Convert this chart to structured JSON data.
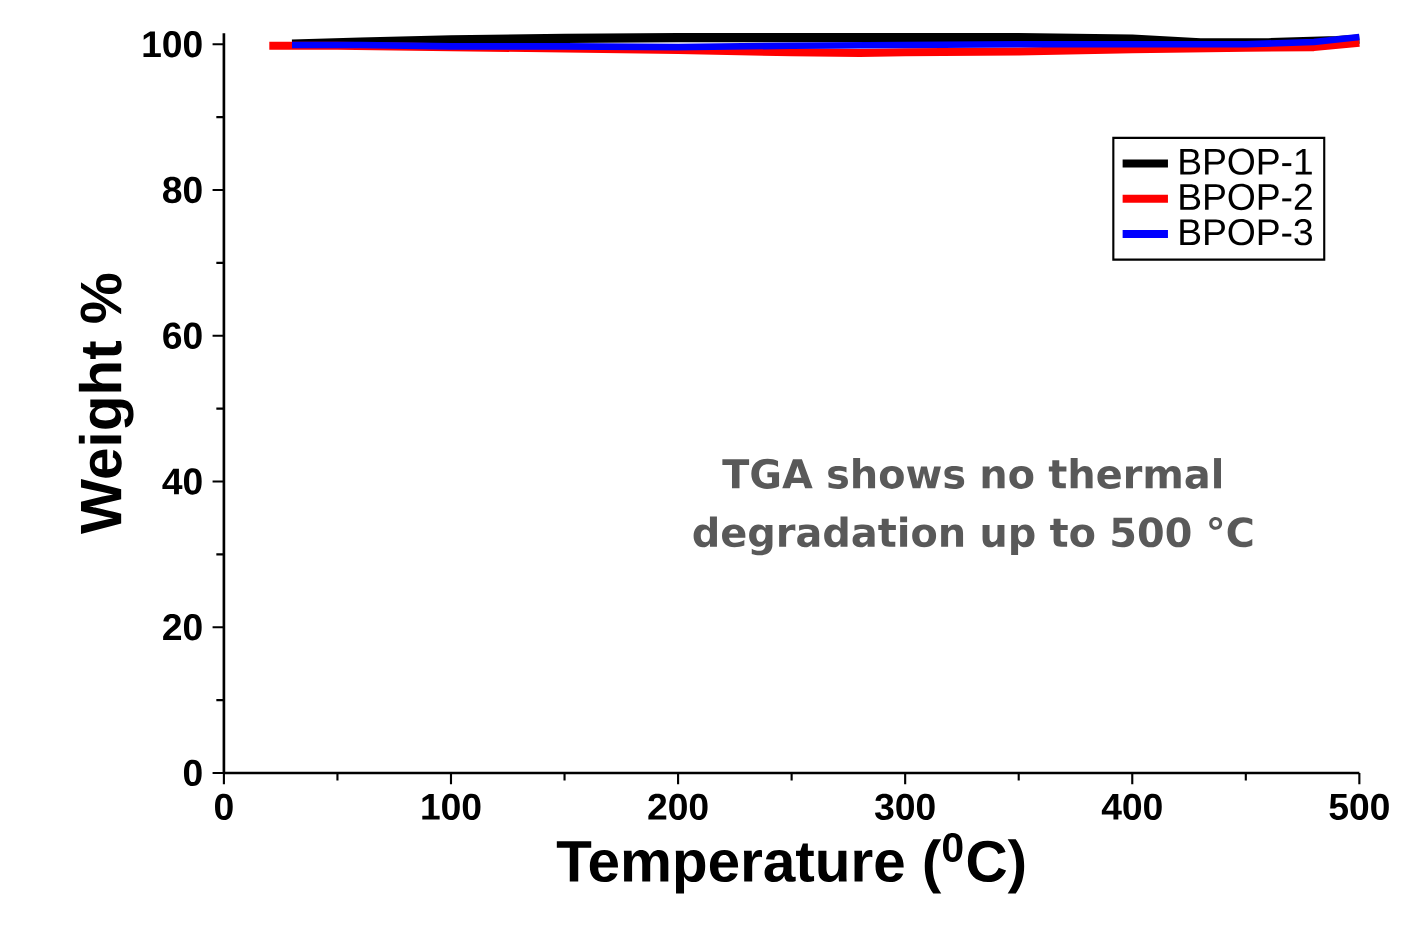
{
  "chart_data": {
    "type": "line",
    "xlabel": "Temperature ($^{0}$C)",
    "ylabel": "Weight %",
    "xlim": [
      0,
      500
    ],
    "ylim": [
      0,
      101.5
    ],
    "xticks": [
      0,
      100,
      200,
      300,
      400,
      500
    ],
    "yticks": [
      0,
      20,
      40,
      60,
      80,
      100
    ],
    "legend": "top right",
    "line_style": "solid",
    "marker": "none",
    "annotations": [
      "TGA shows no thermal degradation up to 500 °C"
    ],
    "series": [
      {
        "name": "BPOP-1",
        "color": "#000000",
        "x": [
          30,
          60,
          100,
          150,
          200,
          250,
          300,
          350,
          400,
          430,
          460,
          490,
          500
        ],
        "values": [
          100.0,
          100.3,
          100.6,
          100.8,
          100.9,
          100.9,
          100.9,
          100.9,
          100.7,
          100.2,
          100.2,
          100.5,
          100.7
        ]
      },
      {
        "name": "BPOP-2",
        "color": "#ff0000",
        "x": [
          20,
          50,
          100,
          150,
          200,
          250,
          280,
          300,
          350,
          400,
          450,
          480,
          500
        ],
        "values": [
          99.8,
          99.8,
          99.6,
          99.4,
          99.2,
          98.9,
          98.8,
          98.9,
          99.0,
          99.3,
          99.5,
          99.6,
          100.2
        ]
      },
      {
        "name": "BPOP-3",
        "color": "#0000ff",
        "x": [
          30,
          60,
          100,
          150,
          200,
          250,
          300,
          350,
          400,
          450,
          480,
          500
        ],
        "values": [
          99.9,
          99.9,
          99.7,
          99.7,
          99.6,
          99.8,
          99.9,
          100.0,
          100.0,
          100.0,
          100.3,
          101.0
        ]
      }
    ]
  }
}
